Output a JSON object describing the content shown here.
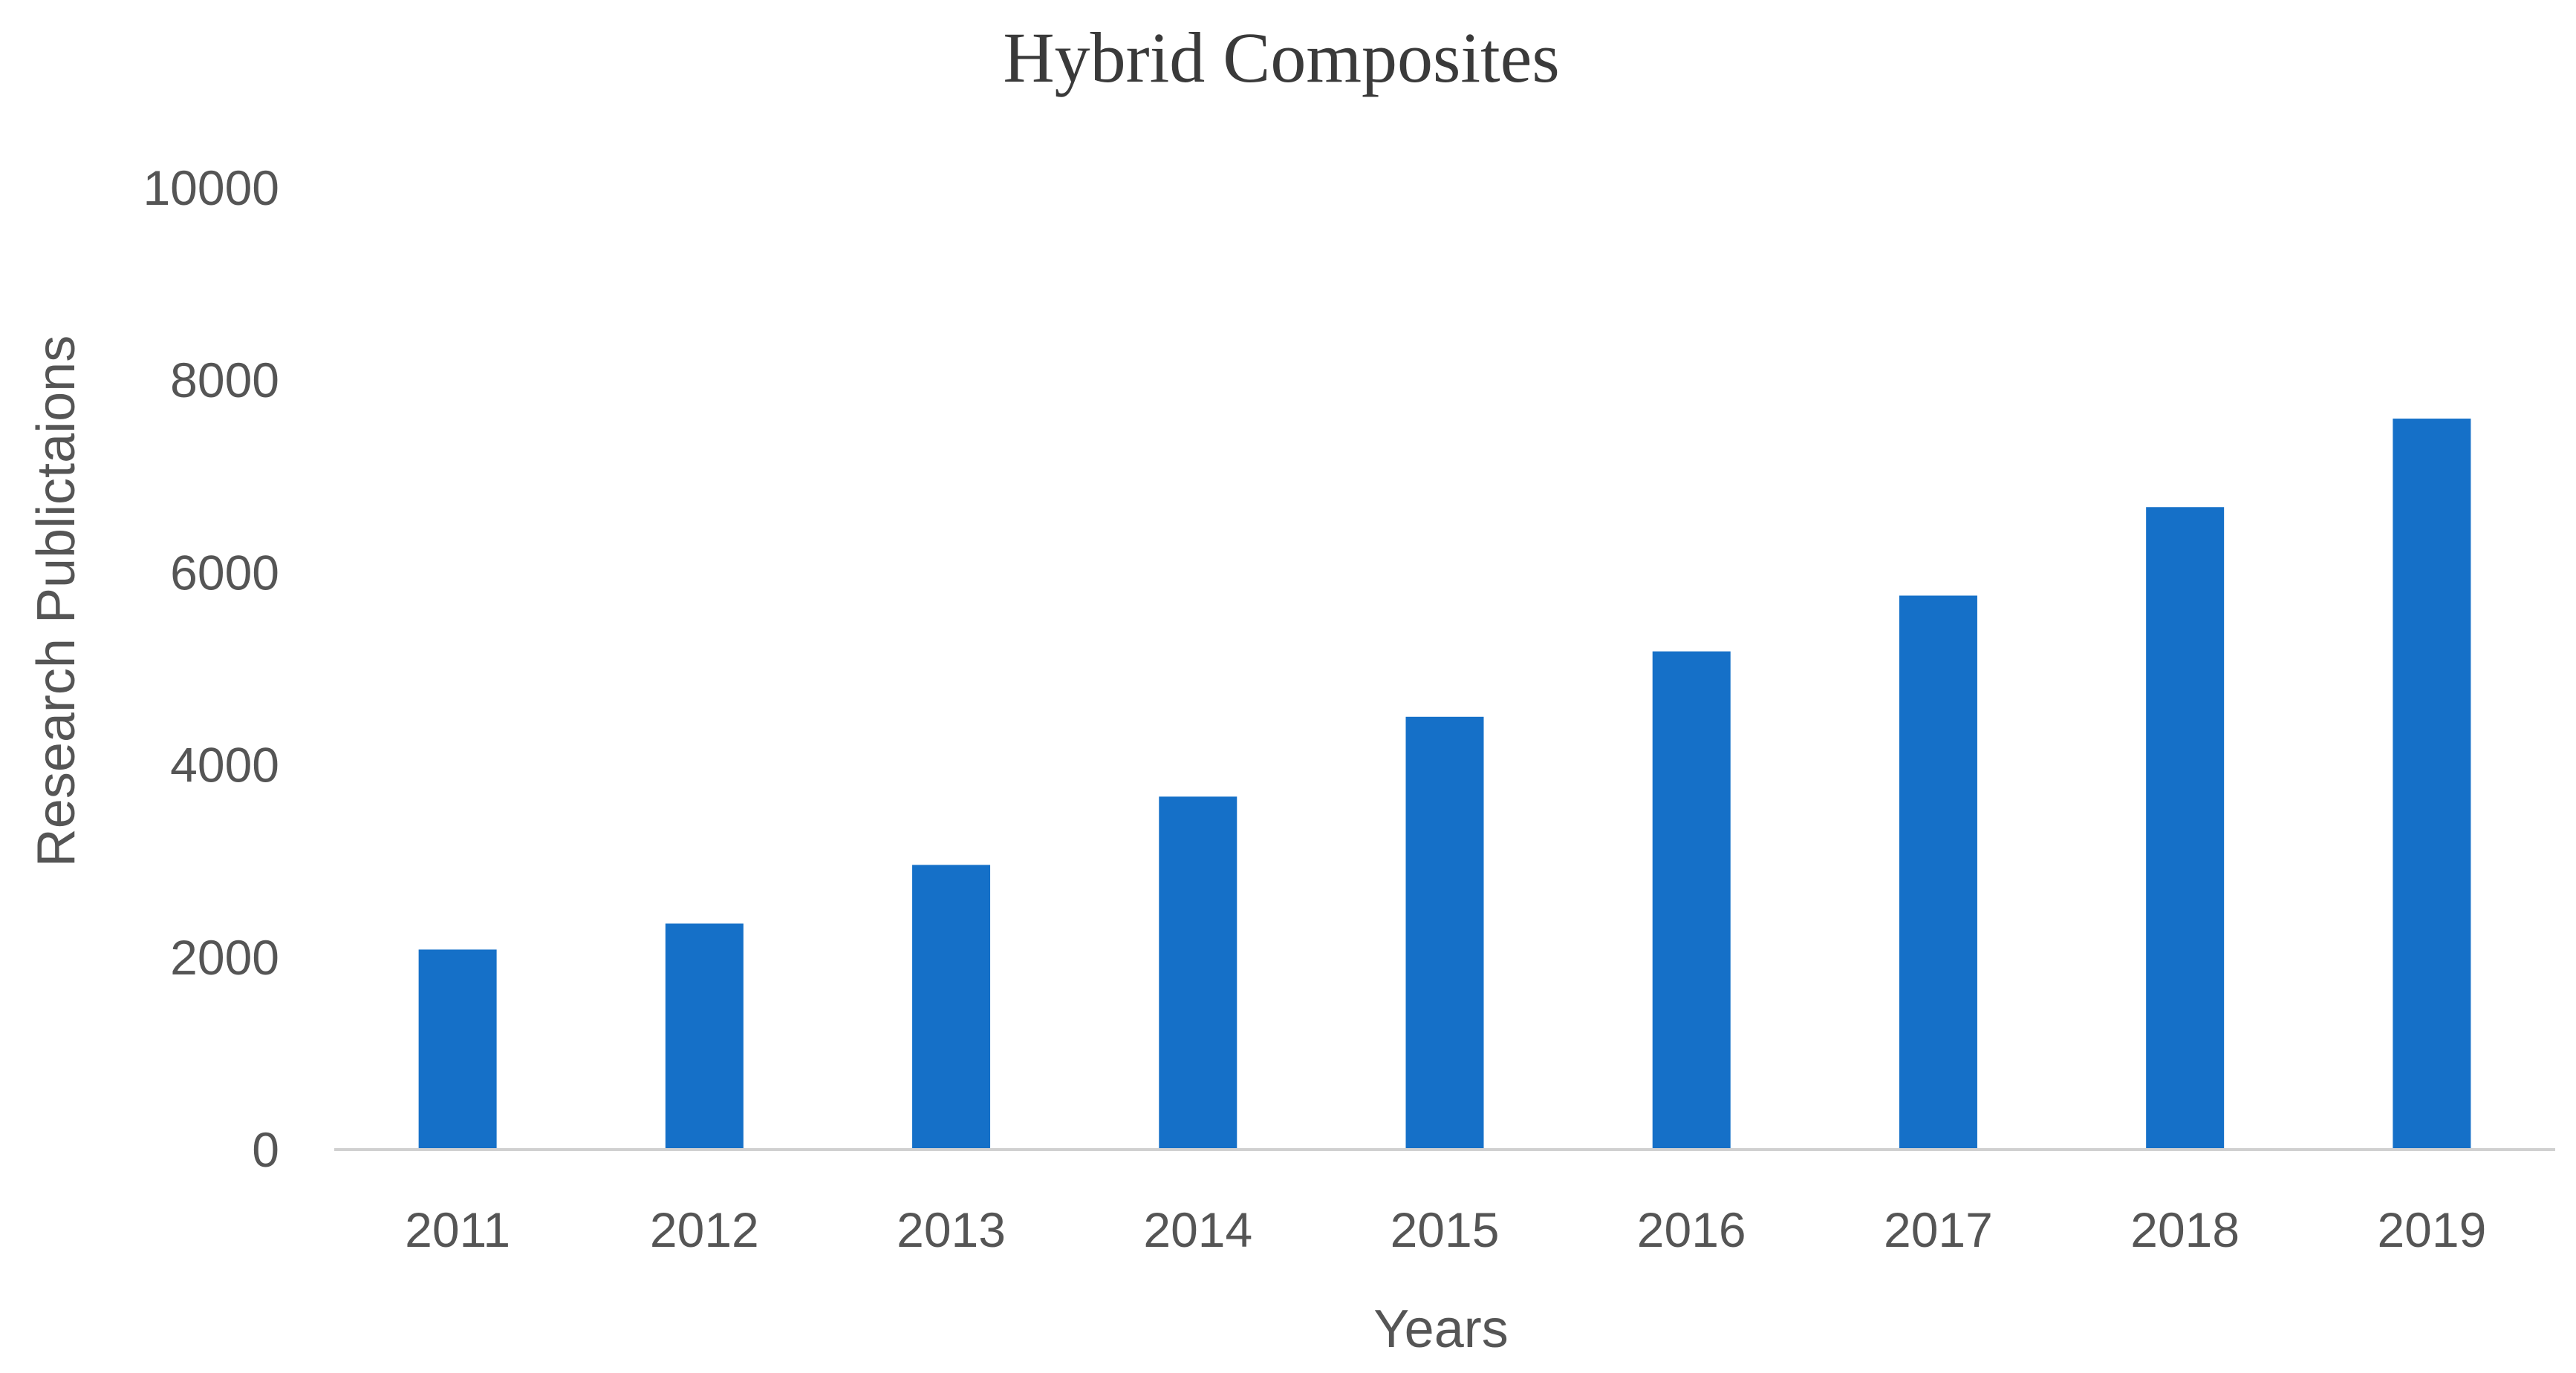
{
  "chart_data": {
    "type": "bar",
    "title": "Hybrid Composites",
    "xlabel": "Years",
    "ylabel": "Research Publictaions",
    "categories": [
      "2011",
      "2012",
      "2013",
      "2014",
      "2015",
      "2016",
      "2017",
      "2018",
      "2019"
    ],
    "values": [
      2080,
      2350,
      2960,
      3670,
      4500,
      5180,
      5760,
      6680,
      7600
    ],
    "ylim": [
      0,
      10000
    ],
    "yticks": [
      0,
      2000,
      4000,
      6000,
      8000,
      10000
    ],
    "ytick_labels": [
      "0",
      "2000",
      "4000",
      "6000",
      "8000",
      "10000"
    ],
    "grid": false,
    "legend": "none",
    "bar_color": "#1570C8",
    "axis_color": "#d0d0d0"
  }
}
